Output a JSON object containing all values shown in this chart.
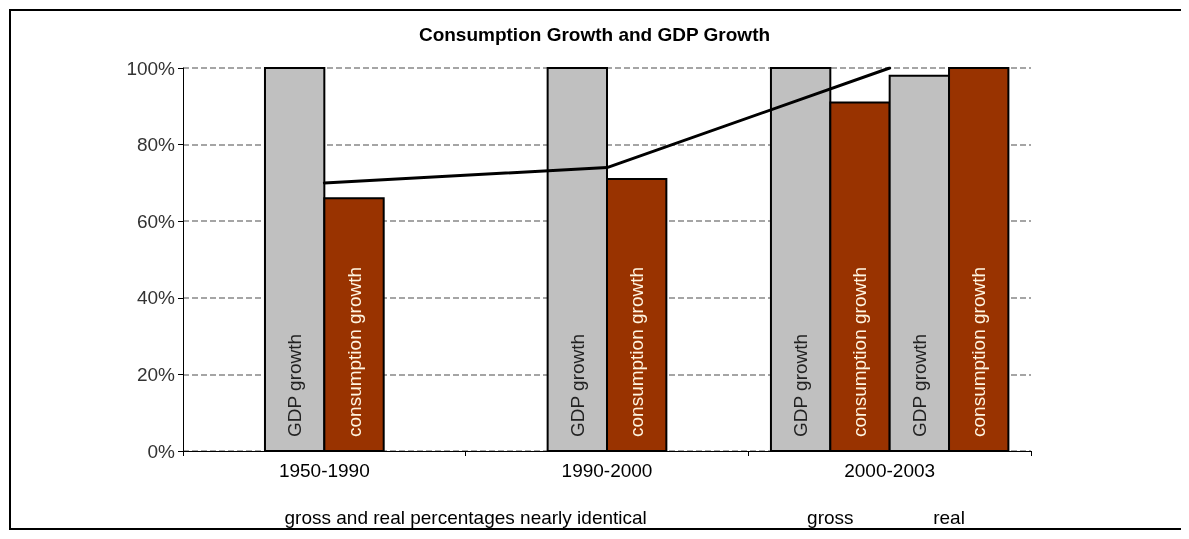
{
  "chart_data": {
    "type": "bar",
    "title": "Consumption Growth and GDP Growth",
    "categories": [
      "1950-1990",
      "1990-2000",
      "2000-2003"
    ],
    "series": [
      {
        "name": "GDP growth",
        "color": "#c0c0c0",
        "values": [
          100,
          100,
          100
        ]
      },
      {
        "name": "consumption growth",
        "color": "#993300",
        "values": [
          66,
          71,
          91
        ]
      },
      {
        "name": "GDP growth",
        "color": "#c0c0c0",
        "values": [
          null,
          null,
          98
        ]
      },
      {
        "name": "consumption growth",
        "color": "#993300",
        "values": [
          null,
          null,
          100
        ]
      },
      {
        "type": "line",
        "color": "#000000",
        "values": [
          70,
          74,
          100
        ]
      }
    ],
    "ylim": [
      0,
      100
    ],
    "yticks": [
      {
        "value": 0,
        "label": "0%"
      },
      {
        "value": 20,
        "label": "20%"
      },
      {
        "value": 40,
        "label": "40%"
      },
      {
        "value": 60,
        "label": "60%"
      },
      {
        "value": 80,
        "label": "80%"
      },
      {
        "value": 100,
        "label": "100%"
      }
    ],
    "grid": "y",
    "line_style": "solid",
    "marker": "none",
    "legend": false,
    "annotations": [
      "gross and real percentages nearly identical",
      "gross",
      "real"
    ]
  }
}
